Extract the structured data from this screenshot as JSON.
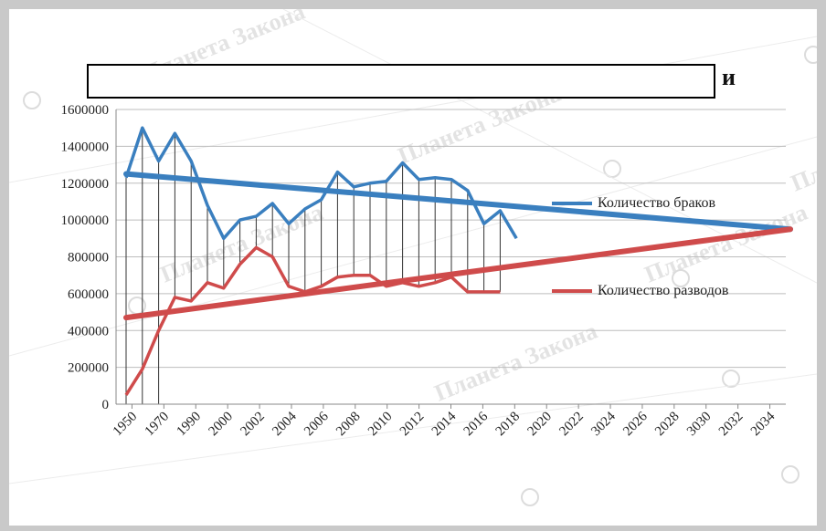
{
  "title": {
    "visible_suffix": "и"
  },
  "chart_data": {
    "type": "line",
    "y_ticks": [
      "0",
      "200000",
      "400000",
      "600000",
      "800000",
      "1000000",
      "1200000",
      "1400000",
      "1600000"
    ],
    "x_ticks": [
      "1950",
      "1970",
      "1990",
      "2000",
      "2002",
      "2004",
      "2006",
      "2008",
      "2010",
      "2012",
      "2014",
      "2016",
      "2018",
      "2020",
      "2022",
      "3024",
      "2026",
      "2028",
      "3030",
      "2032",
      "2034"
    ],
    "ylim": [
      0,
      1600000
    ],
    "grid": true,
    "legend_position": "right",
    "series": [
      {
        "name": "Количество браков",
        "color": "#3a7fbf",
        "values": [
          1230000,
          1500000,
          1320000,
          1470000,
          1320000,
          1080000,
          900000,
          1000000,
          1020000,
          1090000,
          980000,
          1060000,
          1110000,
          1260000,
          1180000,
          1200000,
          1210000,
          1310000,
          1220000,
          1230000,
          1220000,
          1160000,
          980000,
          1050000,
          900000
        ]
      },
      {
        "name": "Количество разводов",
        "color": "#cf4b4b",
        "values": [
          50000,
          190000,
          400000,
          580000,
          560000,
          660000,
          630000,
          760000,
          850000,
          800000,
          640000,
          610000,
          640000,
          690000,
          700000,
          700000,
          640000,
          660000,
          640000,
          660000,
          690000,
          610000,
          610000,
          610000
        ]
      },
      {
        "name": "trend-marriages",
        "color": "#3a7fbf",
        "values": [
          1250000,
          950000
        ]
      },
      {
        "name": "trend-divorces",
        "color": "#cf4b4b",
        "values": [
          470000,
          950000
        ]
      }
    ]
  },
  "watermark": "Планета Закона"
}
